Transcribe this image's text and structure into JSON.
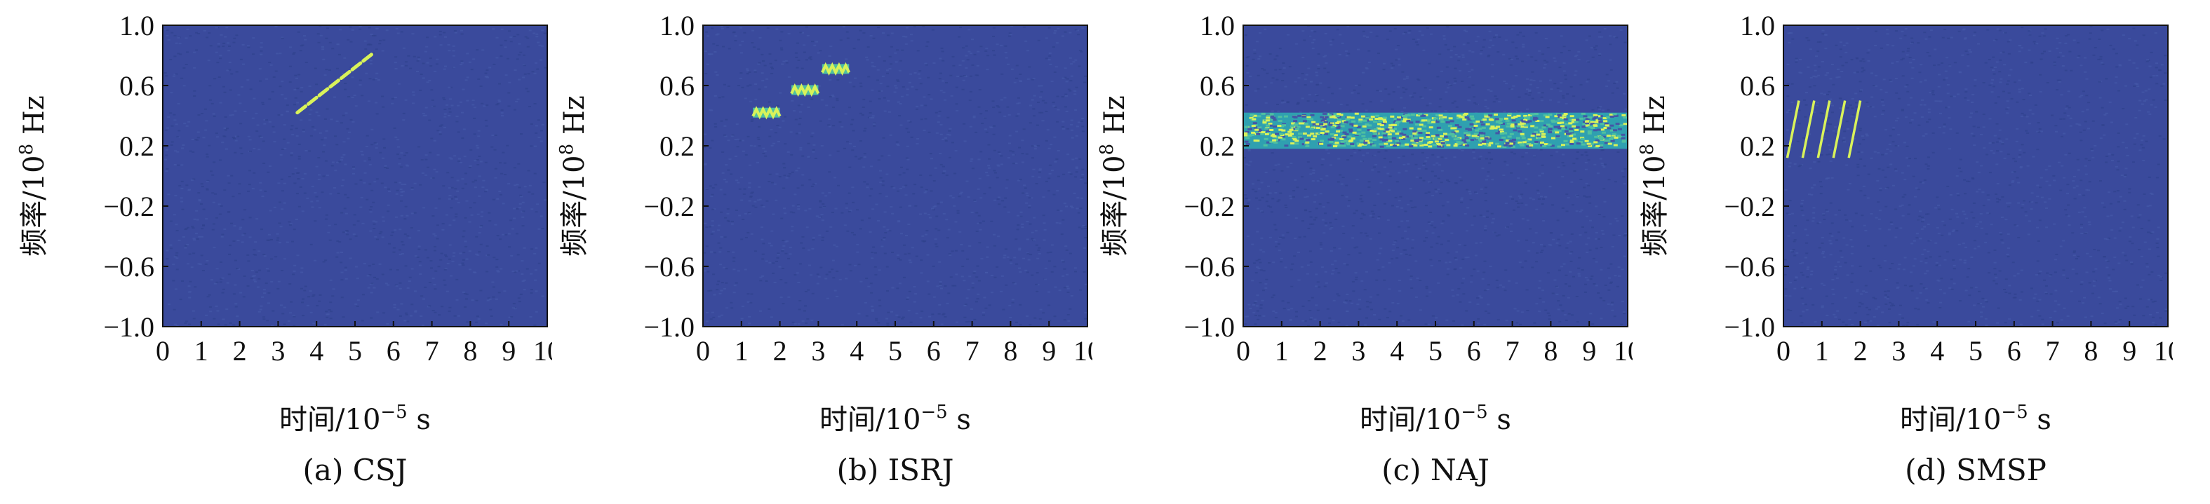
{
  "figure": {
    "background": "#ffffff"
  },
  "colors": {
    "background_field": "#3a4a9c",
    "noise_a": "#31428f",
    "noise_b": "#4456a6",
    "signal_bright": "#d9f25a",
    "signal_mid": "#4fc0a0",
    "signal_band": "#2fa0b0"
  },
  "chart_data": [
    {
      "id": "a",
      "type": "heatmap",
      "caption": "(a) CSJ",
      "xlabel": "时间/10",
      "xlabel_exp": "−5",
      "xlabel_unit": " s",
      "ylabel": "频率/10",
      "ylabel_exp": "8",
      "ylabel_unit": " Hz",
      "xlim": [
        0,
        10
      ],
      "ylim": [
        -1.0,
        1.0
      ],
      "xticks": [
        "0",
        "1",
        "2",
        "3",
        "4",
        "5",
        "6",
        "7",
        "8",
        "9",
        "10"
      ],
      "yticks": [
        "1.0",
        "0.6",
        "0.2",
        "−0.2",
        "−0.6",
        "−1.0"
      ],
      "ytick_values": [
        1.0,
        0.6,
        0.2,
        -0.2,
        -0.6,
        -1.0
      ],
      "signals": [
        {
          "kind": "dashed-line",
          "x0": 3.5,
          "y0": 0.42,
          "x1": 5.5,
          "y1": 0.82,
          "dashes": 7
        }
      ]
    },
    {
      "id": "b",
      "type": "heatmap",
      "caption": "(b) ISRJ",
      "xlabel": "时间/10",
      "xlabel_exp": "−5",
      "xlabel_unit": " s",
      "ylabel": "频率/10",
      "ylabel_exp": "8",
      "ylabel_unit": " Hz",
      "xlim": [
        0,
        10
      ],
      "ylim": [
        -1.0,
        1.0
      ],
      "xticks": [
        "0",
        "1",
        "2",
        "3",
        "4",
        "5",
        "6",
        "7",
        "8",
        "9",
        "10"
      ],
      "yticks": [
        "1.0",
        "0.6",
        "0.2",
        "−0.2",
        "−0.6",
        "−1.0"
      ],
      "ytick_values": [
        1.0,
        0.6,
        0.2,
        -0.2,
        -0.6,
        -1.0
      ],
      "signals": [
        {
          "kind": "segment",
          "x0": 1.3,
          "x1": 2.0,
          "y": 0.42
        },
        {
          "kind": "segment",
          "x0": 2.3,
          "x1": 3.0,
          "y": 0.57
        },
        {
          "kind": "segment",
          "x0": 3.1,
          "x1": 3.8,
          "y": 0.71
        }
      ]
    },
    {
      "id": "c",
      "type": "heatmap",
      "caption": "(c) NAJ",
      "xlabel": "时间/10",
      "xlabel_exp": "−5",
      "xlabel_unit": " s",
      "ylabel": "频率/10",
      "ylabel_exp": "8",
      "ylabel_unit": " Hz",
      "xlim": [
        0,
        10
      ],
      "ylim": [
        -1.0,
        1.0
      ],
      "xticks": [
        "0",
        "1",
        "2",
        "3",
        "4",
        "5",
        "6",
        "7",
        "8",
        "9",
        "10"
      ],
      "yticks": [
        "1.0",
        "0.6",
        "0.2",
        "−0.2",
        "−0.6",
        "−1.0"
      ],
      "ytick_values": [
        1.0,
        0.6,
        0.2,
        -0.2,
        -0.6,
        -1.0
      ],
      "signals": [
        {
          "kind": "band",
          "x0": 0,
          "x1": 10,
          "y0": 0.18,
          "y1": 0.42
        }
      ]
    },
    {
      "id": "d",
      "type": "heatmap",
      "caption": "(d) SMSP",
      "xlabel": "时间/10",
      "xlabel_exp": "−5",
      "xlabel_unit": " s",
      "ylabel": "频率/10",
      "ylabel_exp": "8",
      "ylabel_unit": " Hz",
      "xlim": [
        0,
        10
      ],
      "ylim": [
        -1.0,
        1.0
      ],
      "xticks": [
        "0",
        "1",
        "2",
        "3",
        "4",
        "5",
        "6",
        "7",
        "8",
        "9",
        "10"
      ],
      "yticks": [
        "1.0",
        "0.6",
        "0.2",
        "−0.2",
        "−0.6",
        "−1.0"
      ],
      "ytick_values": [
        1.0,
        0.6,
        0.2,
        -0.2,
        -0.6,
        -1.0
      ],
      "signals": [
        {
          "kind": "line",
          "x0": 0.1,
          "y0": 0.12,
          "x1": 0.4,
          "y1": 0.5
        },
        {
          "kind": "line",
          "x0": 0.5,
          "y0": 0.12,
          "x1": 0.8,
          "y1": 0.5
        },
        {
          "kind": "line",
          "x0": 0.9,
          "y0": 0.12,
          "x1": 1.2,
          "y1": 0.5
        },
        {
          "kind": "line",
          "x0": 1.3,
          "y0": 0.12,
          "x1": 1.6,
          "y1": 0.5
        },
        {
          "kind": "line",
          "x0": 1.7,
          "y0": 0.12,
          "x1": 2.0,
          "y1": 0.5
        }
      ]
    }
  ]
}
